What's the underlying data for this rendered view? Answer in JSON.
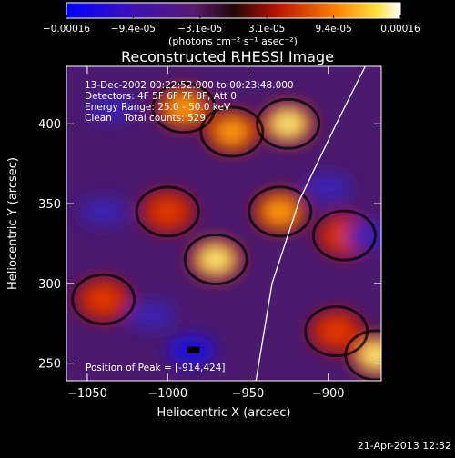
{
  "colorbar": {
    "tick_labels": [
      "-0.00016",
      "-9.4e-05",
      "-3.1e-05",
      "3.1e-05",
      "9.4e-05",
      "0.00016"
    ],
    "units_label": "(photons cm⁻² s⁻¹ asec⁻²)"
  },
  "plot": {
    "title": "Reconstructed RHESSI Image",
    "info_lines": [
      "13-Dec-2002 00:22:52.000 to 00:23:48.000",
      "Detectors: 4F 5F 6F 7F 8F, Att 0",
      "Energy Range: 25.0 - 50.0 keV",
      "Clean    Total counts: 529."
    ],
    "peak_label": "Position of Peak = [-914,424]",
    "timestamp": "21-Apr-2013 12:32"
  },
  "chart_data": {
    "type": "heatmap",
    "title": "Reconstructed RHESSI Image",
    "xlabel": "Heliocentric X (arcsec)",
    "ylabel": "Heliocentric Y (arcsec)",
    "xlim": [
      -1063,
      -867
    ],
    "ylim": [
      239,
      436
    ],
    "x_ticks": [
      -1050,
      -1000,
      -950,
      -900
    ],
    "y_ticks": [
      250,
      300,
      350,
      400
    ],
    "colorbar_range": [
      -0.00016,
      0.00016
    ],
    "peak_position": [
      -914,
      424
    ],
    "colors": {
      "cold": "#0000ff",
      "neutral": "#4a1a6e",
      "warm": "#e03000",
      "hot": "#ffffff"
    },
    "solar_limb": [
      {
        "x": -945,
        "y": 239
      },
      {
        "x": -935,
        "y": 300
      },
      {
        "x": -918,
        "y": 352
      },
      {
        "x": -895,
        "y": 400
      },
      {
        "x": -877,
        "y": 436
      }
    ],
    "hot_regions": [
      {
        "x": -925,
        "y": 400,
        "intensity": 1.0
      },
      {
        "x": -960,
        "y": 395,
        "intensity": 0.85
      },
      {
        "x": -990,
        "y": 410,
        "intensity": 0.8
      },
      {
        "x": -970,
        "y": 315,
        "intensity": 0.95
      },
      {
        "x": -1000,
        "y": 345,
        "intensity": 0.6
      },
      {
        "x": -1040,
        "y": 290,
        "intensity": 0.55
      },
      {
        "x": -930,
        "y": 345,
        "intensity": 0.7
      },
      {
        "x": -890,
        "y": 330,
        "intensity": 0.6
      },
      {
        "x": -895,
        "y": 270,
        "intensity": 0.55
      },
      {
        "x": -870,
        "y": 255,
        "intensity": 0.9
      }
    ],
    "cold_regions": [
      {
        "x": -985,
        "y": 258,
        "intensity": 1.0
      },
      {
        "x": -1010,
        "y": 280,
        "intensity": 0.6
      },
      {
        "x": -1040,
        "y": 345,
        "intensity": 0.55
      },
      {
        "x": -1035,
        "y": 410,
        "intensity": 0.5
      },
      {
        "x": -900,
        "y": 360,
        "intensity": 0.45
      },
      {
        "x": -875,
        "y": 330,
        "intensity": 0.45
      }
    ]
  }
}
